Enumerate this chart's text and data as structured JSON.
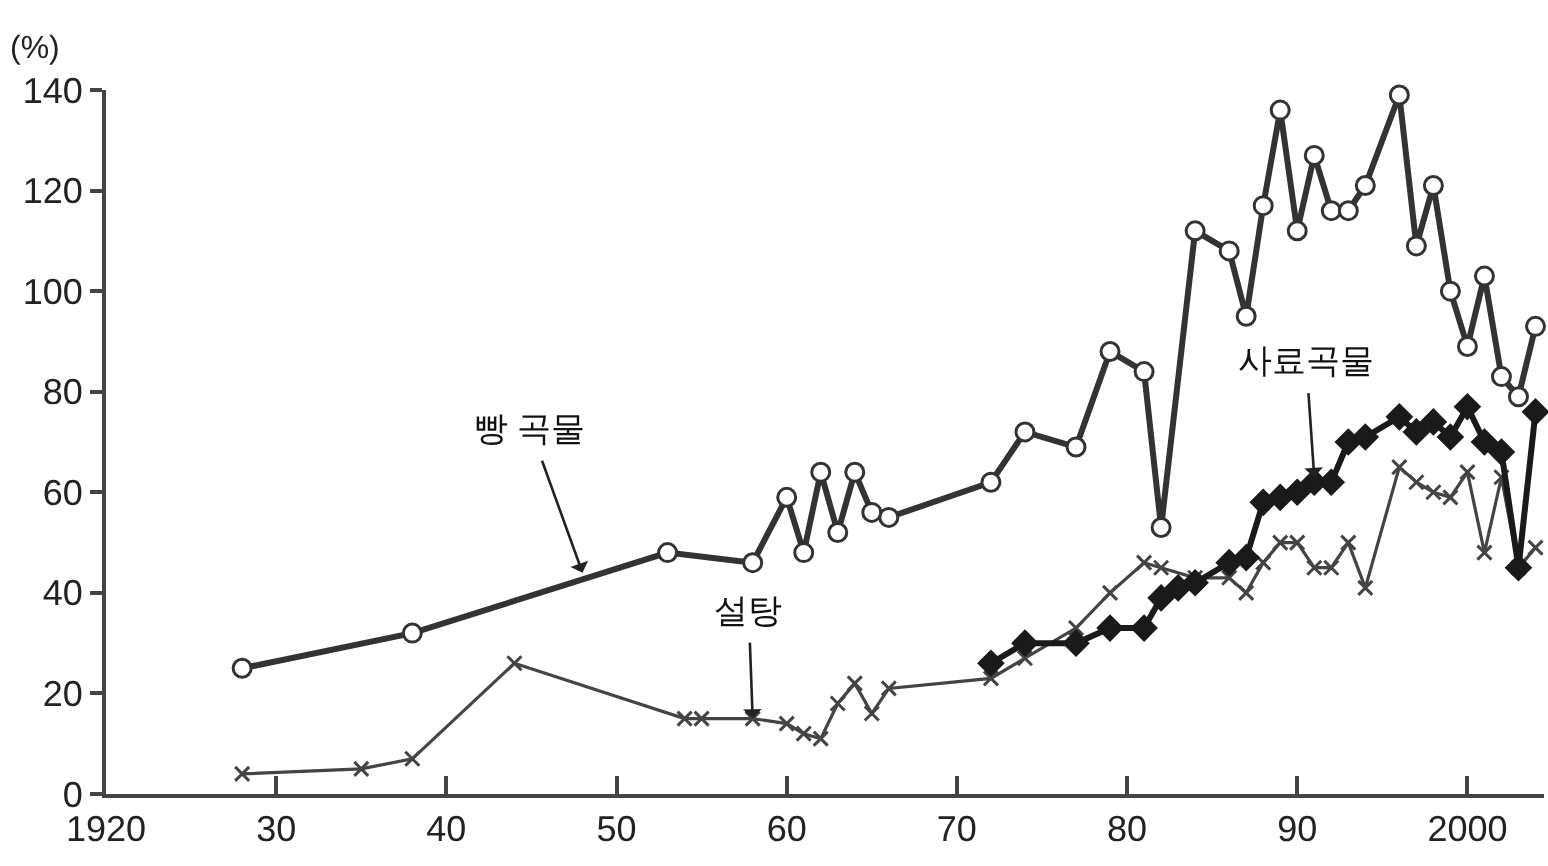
{
  "chart_data": {
    "type": "line",
    "ylabel": "(%)",
    "xlim": [
      1920,
      2004.5
    ],
    "ylim": [
      0,
      140
    ],
    "xticks": [
      1920,
      {
        "value": 1930,
        "label": "30"
      },
      {
        "value": 1940,
        "label": "40"
      },
      {
        "value": 1950,
        "label": "50"
      },
      {
        "value": 1960,
        "label": "60"
      },
      {
        "value": 1970,
        "label": "70"
      },
      {
        "value": 1980,
        "label": "80"
      },
      {
        "value": 1990,
        "label": "90"
      },
      2000
    ],
    "yticks": [
      0,
      20,
      40,
      60,
      80,
      100,
      120,
      140
    ],
    "grid": false,
    "line_style": "solid",
    "series": [
      {
        "color": "#333333",
        "marker": "circle",
        "x": [
          1928,
          1938,
          1953,
          1958,
          1960,
          1961,
          1962,
          1963,
          1964,
          1965,
          1966,
          1972,
          1974,
          1977,
          1979,
          1981,
          1982,
          1984,
          1986,
          1987,
          1988,
          1989,
          1990,
          1991,
          1992,
          1993,
          1994,
          1996,
          1997,
          1998,
          1999,
          2000,
          2001,
          2002,
          2003,
          2004
        ],
        "values": [
          25,
          32,
          48,
          46,
          59,
          48,
          64,
          52,
          64,
          56,
          55,
          62,
          72,
          69,
          88,
          84,
          53,
          112,
          108,
          95,
          117,
          136,
          112,
          127,
          116,
          116,
          121,
          139,
          109,
          121,
          100,
          89,
          103,
          83,
          79,
          93
        ]
      },
      {
        "color": "#444444",
        "marker": "cross",
        "x": [
          1928,
          1935,
          1938,
          1944,
          1954,
          1955,
          1958,
          1960,
          1961,
          1962,
          1963,
          1964,
          1965,
          1966,
          1972,
          1974,
          1977,
          1979,
          1981,
          1982,
          1984,
          1986,
          1987,
          1988,
          1989,
          1990,
          1991,
          1992,
          1993,
          1994,
          1996,
          1997,
          1998,
          1999,
          2000,
          2001,
          2002,
          2003,
          2004
        ],
        "values": [
          4,
          5,
          7,
          26,
          15,
          15,
          15,
          14,
          12,
          11,
          18,
          22,
          16,
          21,
          23,
          27,
          33,
          40,
          46,
          45,
          43,
          43,
          40,
          46,
          50,
          50,
          45,
          45,
          50,
          41,
          65,
          62,
          60,
          59,
          64,
          48,
          63,
          45,
          49
        ]
      },
      {
        "color": "#1a1a1a",
        "marker": "diamond",
        "x": [
          1972,
          1974,
          1977,
          1979,
          1981,
          1982,
          1983,
          1984,
          1986,
          1987,
          1988,
          1989,
          1990,
          1991,
          1992,
          1993,
          1994,
          1996,
          1997,
          1998,
          1999,
          2000,
          2001,
          2002,
          2003,
          2004
        ],
        "values": [
          26,
          30,
          30,
          33,
          33,
          39,
          41,
          42,
          46,
          47,
          58,
          59,
          60,
          62,
          62,
          70,
          71,
          75,
          72,
          74,
          71,
          77,
          70,
          68,
          45,
          76
        ]
      }
    ],
    "annotations": [
      {
        "text": "빵 곡물",
        "x": 1948,
        "y": 44
      },
      {
        "text": "설탕",
        "x": 1958,
        "y": 15
      },
      {
        "text": "사료곡물",
        "x": 1991,
        "y": 63
      }
    ]
  }
}
